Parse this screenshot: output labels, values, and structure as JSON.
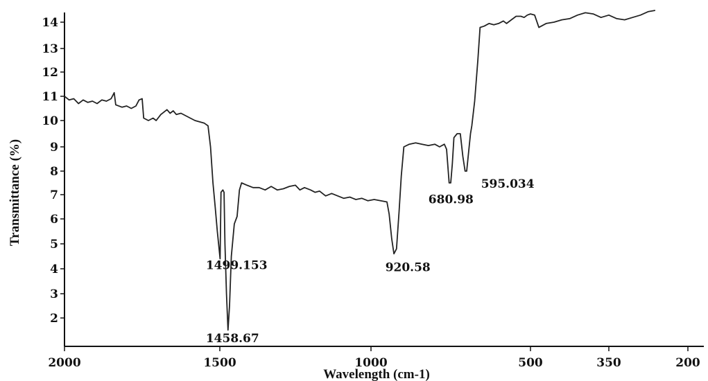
{
  "chart_data": {
    "type": "line",
    "title": "",
    "xlabel": "Wavelength (cm-1)",
    "ylabel": "Transmittance (%)",
    "xlim": [
      2000,
      200
    ],
    "ylim": [
      1,
      14.5
    ],
    "x_ticks": [
      {
        "value": 2000,
        "label": "2000"
      },
      {
        "value": 1500,
        "label": "1500"
      },
      {
        "value": 1000,
        "label": "1000"
      },
      {
        "value": 500,
        "label": "500"
      },
      {
        "value": 350,
        "label": "350"
      },
      {
        "value": 200,
        "label": "200"
      }
    ],
    "y_ticks": [
      {
        "value": 2,
        "label": "2"
      },
      {
        "value": 3,
        "label": "3"
      },
      {
        "value": 4,
        "label": "4"
      },
      {
        "value": 5,
        "label": "5"
      },
      {
        "value": 6,
        "label": "6"
      },
      {
        "value": 7,
        "label": "7"
      },
      {
        "value": 8,
        "label": "8"
      },
      {
        "value": 9,
        "label": "9"
      },
      {
        "value": 10,
        "label": "10"
      },
      {
        "value": 11,
        "label": "11"
      },
      {
        "value": 12,
        "label": "12"
      },
      {
        "value": 13,
        "label": "13"
      },
      {
        "value": 14,
        "label": "14"
      }
    ],
    "grid": false,
    "series": [
      {
        "color": "#222222",
        "points": [
          [
            2000,
            11.0
          ],
          [
            1985,
            10.85
          ],
          [
            1970,
            10.9
          ],
          [
            1955,
            10.7
          ],
          [
            1940,
            10.85
          ],
          [
            1925,
            10.75
          ],
          [
            1910,
            10.8
          ],
          [
            1895,
            10.7
          ],
          [
            1880,
            10.85
          ],
          [
            1865,
            10.8
          ],
          [
            1850,
            10.9
          ],
          [
            1840,
            11.15
          ],
          [
            1835,
            10.65
          ],
          [
            1815,
            10.55
          ],
          [
            1800,
            10.6
          ],
          [
            1785,
            10.5
          ],
          [
            1770,
            10.6
          ],
          [
            1760,
            10.85
          ],
          [
            1750,
            10.9
          ],
          [
            1745,
            10.1
          ],
          [
            1730,
            10.0
          ],
          [
            1715,
            10.1
          ],
          [
            1705,
            10.0
          ],
          [
            1690,
            10.25
          ],
          [
            1680,
            10.35
          ],
          [
            1670,
            10.45
          ],
          [
            1660,
            10.3
          ],
          [
            1650,
            10.4
          ],
          [
            1640,
            10.25
          ],
          [
            1625,
            10.3
          ],
          [
            1610,
            10.2
          ],
          [
            1595,
            10.1
          ],
          [
            1580,
            10.0
          ],
          [
            1565,
            9.95
          ],
          [
            1550,
            9.9
          ],
          [
            1538,
            9.8
          ],
          [
            1530,
            9.0
          ],
          [
            1522,
            7.5
          ],
          [
            1515,
            6.5
          ],
          [
            1508,
            5.5
          ],
          [
            1499,
            4.4
          ],
          [
            1496,
            7.1
          ],
          [
            1490,
            7.2
          ],
          [
            1486,
            7.1
          ],
          [
            1483,
            5.0
          ],
          [
            1478,
            3.0
          ],
          [
            1473,
            1.5
          ],
          [
            1468,
            2.5
          ],
          [
            1462,
            4.5
          ],
          [
            1452,
            5.8
          ],
          [
            1443,
            6.1
          ],
          [
            1435,
            7.2
          ],
          [
            1428,
            7.5
          ],
          [
            1410,
            7.4
          ],
          [
            1390,
            7.3
          ],
          [
            1370,
            7.3
          ],
          [
            1350,
            7.2
          ],
          [
            1330,
            7.35
          ],
          [
            1310,
            7.2
          ],
          [
            1290,
            7.25
          ],
          [
            1270,
            7.35
          ],
          [
            1250,
            7.4
          ],
          [
            1235,
            7.2
          ],
          [
            1220,
            7.3
          ],
          [
            1200,
            7.2
          ],
          [
            1185,
            7.1
          ],
          [
            1170,
            7.15
          ],
          [
            1150,
            6.95
          ],
          [
            1130,
            7.05
          ],
          [
            1110,
            6.95
          ],
          [
            1090,
            6.85
          ],
          [
            1070,
            6.9
          ],
          [
            1050,
            6.8
          ],
          [
            1030,
            6.85
          ],
          [
            1010,
            6.75
          ],
          [
            990,
            6.8
          ],
          [
            970,
            6.75
          ],
          [
            950,
            6.7
          ],
          [
            943,
            6.2
          ],
          [
            935,
            5.2
          ],
          [
            928,
            4.6
          ],
          [
            920,
            4.8
          ],
          [
            912,
            6.3
          ],
          [
            905,
            7.8
          ],
          [
            897,
            9.0
          ],
          [
            880,
            9.1
          ],
          [
            860,
            9.15
          ],
          [
            840,
            9.1
          ],
          [
            820,
            9.05
          ],
          [
            800,
            9.1
          ],
          [
            785,
            9.0
          ],
          [
            770,
            9.1
          ],
          [
            763,
            8.9
          ],
          [
            755,
            7.5
          ],
          [
            750,
            7.5
          ],
          [
            745,
            8.3
          ],
          [
            740,
            9.35
          ],
          [
            730,
            9.5
          ],
          [
            720,
            9.5
          ],
          [
            712,
            8.6
          ],
          [
            705,
            8.0
          ],
          [
            700,
            8.0
          ],
          [
            693,
            8.9
          ],
          [
            688,
            9.5
          ],
          [
            684,
            9.8
          ],
          [
            675,
            10.8
          ],
          [
            665,
            12.5
          ],
          [
            658,
            13.8
          ],
          [
            645,
            13.85
          ],
          [
            630,
            13.95
          ],
          [
            615,
            13.9
          ],
          [
            600,
            13.95
          ],
          [
            585,
            14.05
          ],
          [
            575,
            13.95
          ],
          [
            560,
            14.1
          ],
          [
            545,
            14.25
          ],
          [
            530,
            14.25
          ],
          [
            520,
            14.2
          ],
          [
            510,
            14.3
          ],
          [
            500,
            14.35
          ],
          [
            492,
            14.3
          ],
          [
            484,
            13.8
          ],
          [
            470,
            13.95
          ],
          [
            455,
            14.0
          ],
          [
            440,
            14.1
          ],
          [
            425,
            14.15
          ],
          [
            410,
            14.3
          ],
          [
            395,
            14.4
          ],
          [
            380,
            14.35
          ],
          [
            365,
            14.2
          ],
          [
            350,
            14.3
          ],
          [
            335,
            14.15
          ],
          [
            320,
            14.1
          ],
          [
            305,
            14.2
          ],
          [
            290,
            14.3
          ],
          [
            275,
            14.45
          ],
          [
            262,
            14.5
          ]
        ]
      }
    ],
    "annotations": [
      {
        "text": "1499.153",
        "x": 1545,
        "y": 3.98
      },
      {
        "text": "1458.67",
        "x": 1545,
        "y": 0.98
      },
      {
        "text": "920.58",
        "x": 955,
        "y": 3.9
      },
      {
        "text": "680.98",
        "x": 820,
        "y": 6.65
      },
      {
        "text": "595.034",
        "x": 655,
        "y": 7.3
      }
    ]
  }
}
